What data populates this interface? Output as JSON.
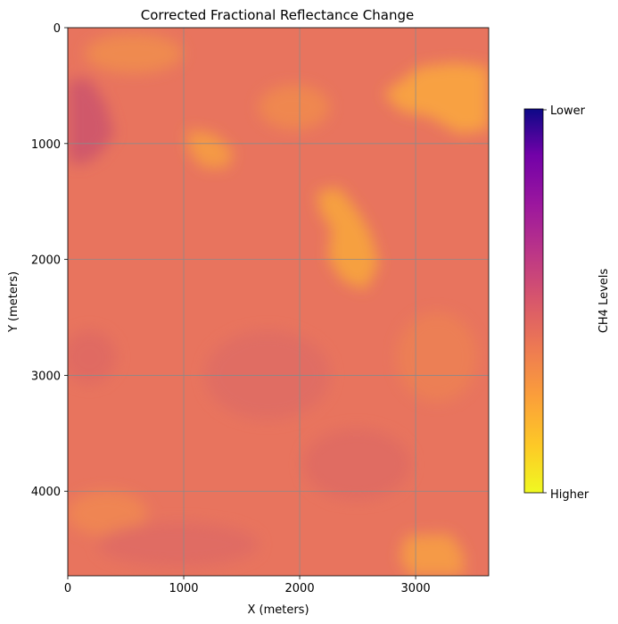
{
  "chart_data": {
    "type": "heatmap",
    "title": "Corrected Fractional Reflectance Change",
    "xlabel": "X (meters)",
    "ylabel": "Y (meters)",
    "xlim": [
      0,
      3630
    ],
    "ylim": [
      4730,
      0
    ],
    "x_ticks": [
      0,
      1000,
      2000,
      3000
    ],
    "y_ticks": [
      0,
      1000,
      2000,
      3000,
      4000
    ],
    "grid": true,
    "colormap": "plasma",
    "colorbar": {
      "label": "CH4 Levels",
      "tick_labels": [
        "Lower",
        "Higher"
      ],
      "top_color": "#0d0887",
      "bottom_color": "#f0f921"
    },
    "base_color": "#e8745e",
    "features": [
      {
        "description": "bright region upper-right",
        "x": [
          2700,
          3630
        ],
        "y": [
          300,
          800
        ],
        "level": "higher"
      },
      {
        "description": "bright streak center",
        "x": [
          2150,
          2700
        ],
        "y": [
          1350,
          2250
        ],
        "level": "higher"
      },
      {
        "description": "bright patch",
        "x": [
          1050,
          1450
        ],
        "y": [
          850,
          1200
        ],
        "level": "higher"
      },
      {
        "description": "bright patch lower-right",
        "x": [
          3000,
          3450
        ],
        "y": [
          4350,
          4730
        ],
        "level": "higher"
      },
      {
        "description": "darker region upper-left",
        "x": [
          0,
          400
        ],
        "y": [
          450,
          1150
        ],
        "level": "lower"
      }
    ]
  }
}
